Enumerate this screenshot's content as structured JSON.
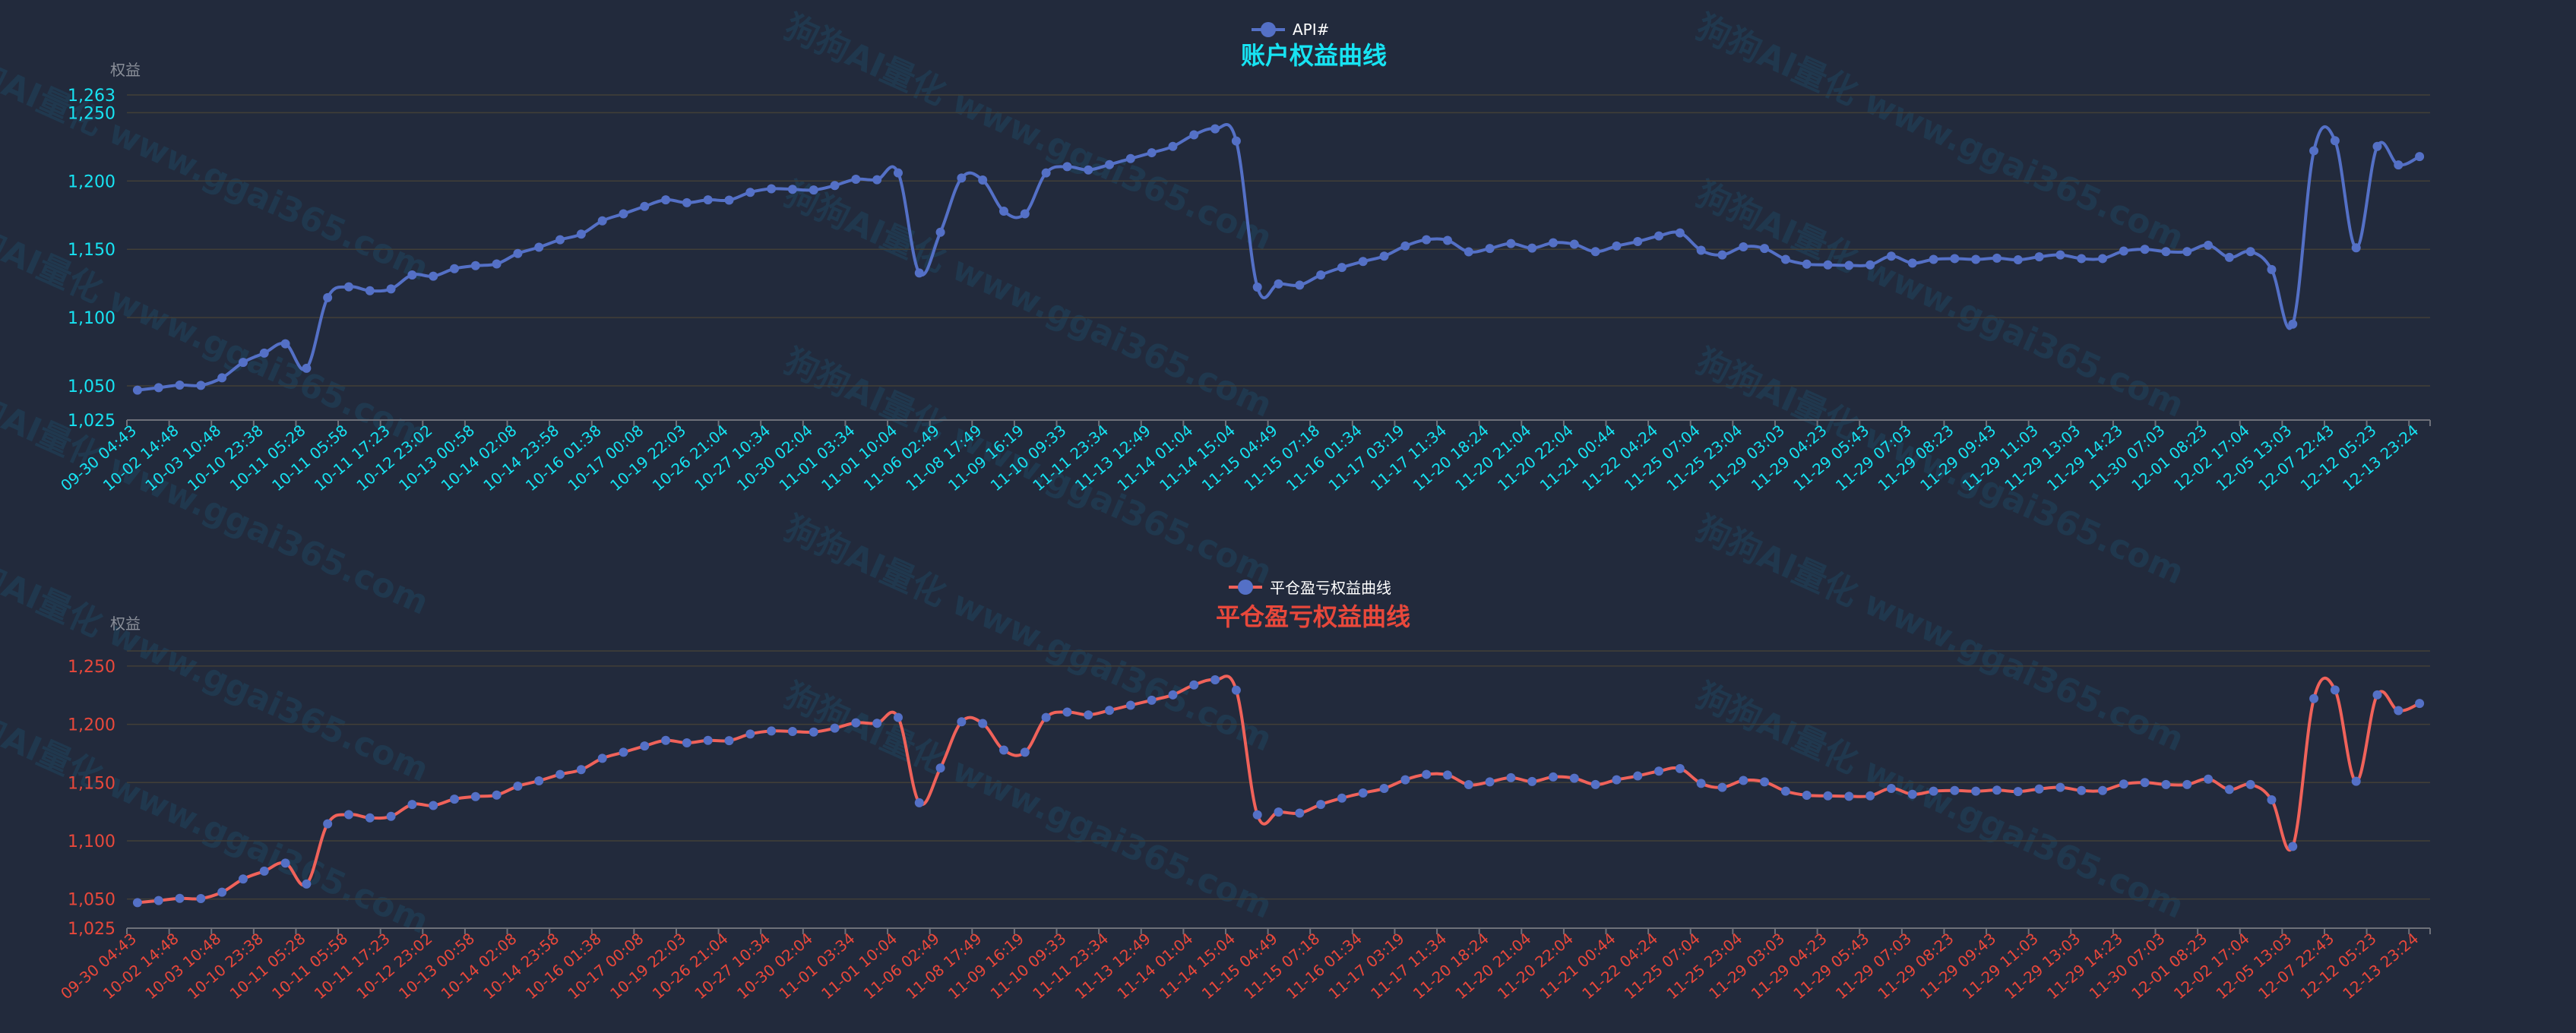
{
  "watermark": "狗狗AI量化 www.ggai365.com",
  "colors": {
    "background": "#222a3c",
    "top_line": "#5470c6",
    "bottom_line": "#f0625a",
    "marker": "#5470c6",
    "top_accent": "#17e3f2",
    "bottom_accent": "#e8483b",
    "gridline": "#423f37",
    "axis": "#6e7079"
  },
  "chart_data": [
    {
      "type": "line",
      "smooth": true,
      "title": "账户权益曲线",
      "legend": "API#",
      "legend_placement": "top-center",
      "ylabel": "权益",
      "ylim": [
        1025,
        1263
      ],
      "yticks": [
        "1,025",
        "1,050",
        "1,100",
        "1,150",
        "1,200",
        "1,250",
        "1,263"
      ],
      "grid": true,
      "xtick_labels": [
        "09-30 04:43",
        "10-02 14:48",
        "10-03 10:48",
        "10-10 23:38",
        "10-11 05:28",
        "10-11 05:58",
        "10-11 17:23",
        "10-12 23:02",
        "10-13 00:58",
        "10-14 02:08",
        "10-14 23:58",
        "10-16 01:38",
        "10-17 00:08",
        "10-19 22:03",
        "10-26 21:04",
        "10-27 10:34",
        "10-30 02:04",
        "11-01 03:34",
        "11-01 10:04",
        "11-06 02:49",
        "11-08 17:49",
        "11-09 16:19",
        "11-10 09:33",
        "11-11 23:34",
        "11-13 12:49",
        "11-14 01:04",
        "11-14 15:04",
        "11-15 04:49",
        "11-15 07:18",
        "11-16 01:34",
        "11-17 03:19",
        "11-17 11:34",
        "11-20 18:24",
        "11-20 21:04",
        "11-20 22:04",
        "11-21 00:44",
        "11-22 04:24",
        "11-25 07:04",
        "11-25 23:04",
        "11-29 03:03",
        "11-29 04:23",
        "11-29 05:43",
        "11-29 07:03",
        "11-29 08:23",
        "11-29 09:43",
        "11-29 11:03",
        "11-29 13:03",
        "11-29 14:23",
        "11-30 07:03",
        "12-01 08:23",
        "12-02 17:04",
        "12-05 13:03",
        "12-07 22:43",
        "12-12 05:23",
        "12-13 23:24"
      ],
      "values": [
        1046.9,
        1048.7,
        1050.6,
        1050.4,
        1055.9,
        1067.2,
        1074,
        1080.8,
        1062.9,
        1114.6,
        1122.5,
        1119.7,
        1121,
        1131.2,
        1130.3,
        1135.8,
        1138,
        1139.3,
        1146.9,
        1151.5,
        1157,
        1161.1,
        1170.8,
        1176,
        1181.4,
        1186.2,
        1184.1,
        1186.2,
        1186,
        1191.7,
        1194.3,
        1193.9,
        1193.4,
        1196.7,
        1201.3,
        1200.9,
        1205.9,
        1132.7,
        1162.5,
        1202.2,
        1200.7,
        1177.9,
        1176,
        1205.9,
        1210.5,
        1208.1,
        1212,
        1216.4,
        1220.7,
        1225.3,
        1233.8,
        1238.2,
        1229.3,
        1122.3,
        1124.7,
        1123.8,
        1131.2,
        1136.7,
        1141.1,
        1145,
        1152.4,
        1157,
        1156.5,
        1148.2,
        1150.6,
        1154.2,
        1150.9,
        1154.8,
        1153.7,
        1148.3,
        1152.4,
        1155.7,
        1159.8,
        1162,
        1149.3,
        1145.9,
        1151.8,
        1150.6,
        1142.6,
        1139.1,
        1138.6,
        1138.2,
        1138.6,
        1145,
        1139.9,
        1142.6,
        1143.2,
        1142.6,
        1143.5,
        1142.3,
        1144.5,
        1145.9,
        1143.2,
        1143.2,
        1148.7,
        1150,
        1148.3,
        1148.3,
        1153,
        1144.1,
        1148.3,
        1135.2,
        1095.2,
        1222.1,
        1229.5,
        1151.1,
        1225.3,
        1211.8,
        1217.9
      ]
    },
    {
      "type": "line",
      "smooth": true,
      "title": "平仓盈亏权益曲线",
      "legend": "平仓盈亏权益曲线",
      "legend_placement": "top-center",
      "ylabel": "权益",
      "ylim": [
        1025,
        1263
      ],
      "yticks": [
        "1,025",
        "1,050",
        "1,100",
        "1,150",
        "1,200",
        "1,250"
      ],
      "grid": true,
      "xtick_labels": [
        "09-30 04:43",
        "10-02 14:48",
        "10-03 10:48",
        "10-10 23:38",
        "10-11 05:28",
        "10-11 05:58",
        "10-11 17:23",
        "10-12 23:02",
        "10-13 00:58",
        "10-14 02:08",
        "10-14 23:58",
        "10-16 01:38",
        "10-17 00:08",
        "10-19 22:03",
        "10-26 21:04",
        "10-27 10:34",
        "10-30 02:04",
        "11-01 03:34",
        "11-01 10:04",
        "11-06 02:49",
        "11-08 17:49",
        "11-09 16:19",
        "11-10 09:33",
        "11-11 23:34",
        "11-13 12:49",
        "11-14 01:04",
        "11-14 15:04",
        "11-15 04:49",
        "11-15 07:18",
        "11-16 01:34",
        "11-17 03:19",
        "11-17 11:34",
        "11-20 18:24",
        "11-20 21:04",
        "11-20 22:04",
        "11-21 00:44",
        "11-22 04:24",
        "11-25 07:04",
        "11-25 23:04",
        "11-29 03:03",
        "11-29 04:23",
        "11-29 05:43",
        "11-29 07:03",
        "11-29 08:23",
        "11-29 09:43",
        "11-29 11:03",
        "11-29 13:03",
        "11-29 14:23",
        "11-30 07:03",
        "12-01 08:23",
        "12-02 17:04",
        "12-05 13:03",
        "12-07 22:43",
        "12-12 05:23",
        "12-13 23:24"
      ],
      "values": [
        1046.9,
        1048.7,
        1050.6,
        1050.4,
        1055.9,
        1067.2,
        1074,
        1080.8,
        1062.9,
        1114.6,
        1122.5,
        1119.7,
        1121,
        1131.2,
        1130.3,
        1135.8,
        1138,
        1139.3,
        1146.9,
        1151.5,
        1157,
        1161.1,
        1170.8,
        1176,
        1181.4,
        1186.2,
        1184.1,
        1186.2,
        1186,
        1191.7,
        1194.3,
        1193.9,
        1193.4,
        1196.7,
        1201.3,
        1200.9,
        1205.9,
        1132.7,
        1162.5,
        1202.2,
        1200.7,
        1177.9,
        1176,
        1205.9,
        1210.5,
        1208.1,
        1212,
        1216.4,
        1220.7,
        1225.3,
        1233.8,
        1238.2,
        1229.3,
        1122.3,
        1124.7,
        1123.8,
        1131.2,
        1136.7,
        1141.1,
        1145,
        1152.4,
        1157,
        1156.5,
        1148.2,
        1150.6,
        1154.2,
        1150.9,
        1154.8,
        1153.7,
        1148.3,
        1152.4,
        1155.7,
        1159.8,
        1162,
        1149.3,
        1145.9,
        1151.8,
        1150.6,
        1142.6,
        1139.1,
        1138.6,
        1138.2,
        1138.6,
        1145,
        1139.9,
        1142.6,
        1143.2,
        1142.6,
        1143.5,
        1142.3,
        1144.5,
        1145.9,
        1143.2,
        1143.2,
        1148.7,
        1150,
        1148.3,
        1148.3,
        1153,
        1144.1,
        1148.3,
        1135.2,
        1095.2,
        1222.1,
        1229.5,
        1151.1,
        1225.3,
        1211.8,
        1217.9
      ]
    }
  ]
}
